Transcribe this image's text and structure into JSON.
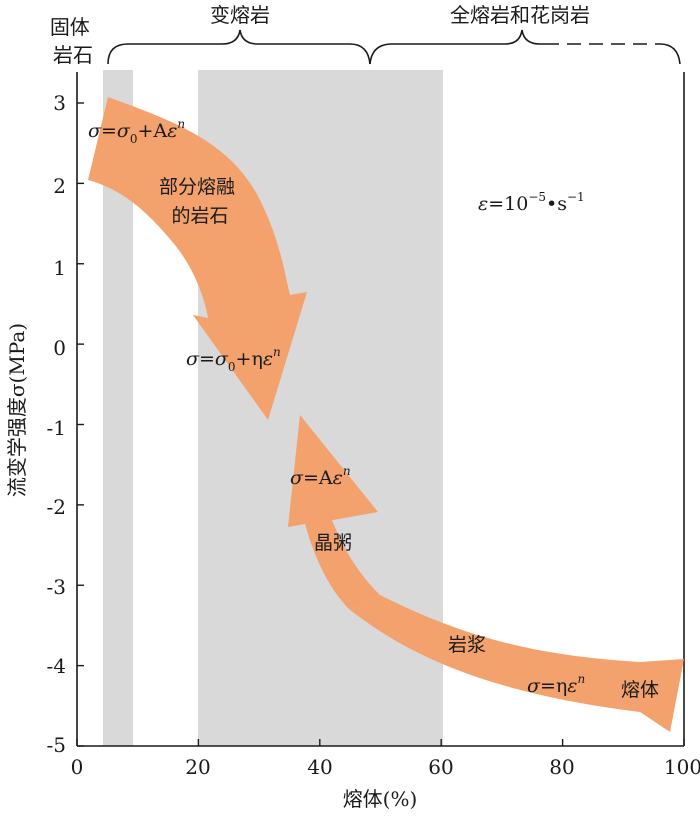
{
  "chart_data": {
    "type": "diagram",
    "xlabel": "熔体(%)",
    "ylabel": "流变学强度σ(MPa)",
    "xlim": [
      0,
      100
    ],
    "ylim": [
      -5,
      3.3
    ],
    "x_ticks": [
      "0",
      "20",
      "40",
      "60",
      "80",
      "100"
    ],
    "y_ticks": [
      "3",
      "2",
      "1",
      "0",
      "-1",
      "-2",
      "-3",
      "-4",
      "-5"
    ],
    "shaded_bands": [
      {
        "name": "固体岩石",
        "x_range": [
          4.5,
          9.5
        ]
      },
      {
        "name": "变熔岩",
        "x_range": [
          20,
          60.5
        ]
      }
    ],
    "region_labels": {
      "solid_rock": "固体\n岩石",
      "migmatite": "变熔岩",
      "diatexite_granite": "全熔岩和花岗岩"
    },
    "strain_rate_label": "ε=10⁻⁵•s⁻¹",
    "arrow_color": "#f4a26d",
    "band_color": "#d9d9d9",
    "arrows": [
      {
        "name": "部分熔融的岩石",
        "label_lines": [
          "部分熔融",
          "的岩石"
        ],
        "equation_top": "σ=σ₀+Aεⁿ",
        "equation_bottom": "σ=σ₀+ηεⁿ",
        "path": [
          [
            2,
            2.2
          ],
          [
            8,
            2.6
          ],
          [
            17,
            2.0
          ],
          [
            27,
            0.9
          ],
          [
            35,
            -0.6
          ]
        ]
      },
      {
        "name": "晶粥",
        "label": "晶粥",
        "equation": "σ=Aεⁿ",
        "path": [
          [
            37,
            -1.0
          ],
          [
            38,
            -2.3
          ],
          [
            45,
            -3.3
          ]
        ]
      },
      {
        "name": "岩浆-熔体",
        "label_magma": "岩浆",
        "label_melt": "熔体",
        "equation": "σ=ηεⁿ",
        "path": [
          [
            45,
            -3.3
          ],
          [
            70,
            -4.0
          ],
          [
            100,
            -4.2
          ]
        ]
      }
    ]
  }
}
